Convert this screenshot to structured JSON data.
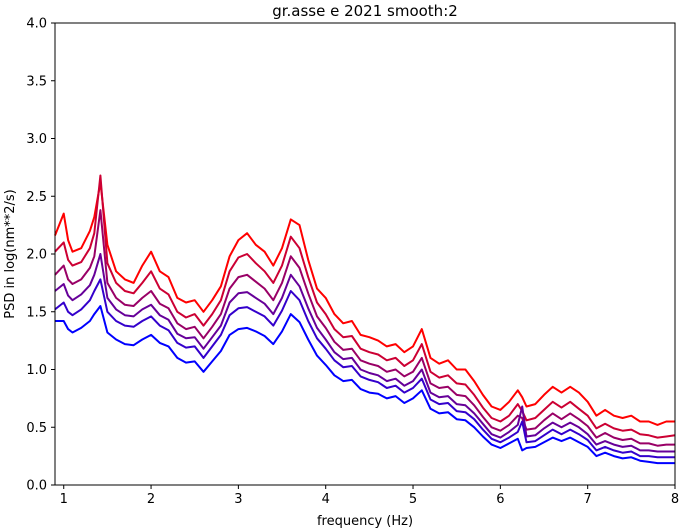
{
  "chart_data": {
    "type": "line",
    "title": "gr.asse e 2021 smooth:2",
    "xlabel": "frequency (Hz)",
    "ylabel": "PSD in log(nm**2/s)",
    "xlim": [
      0.9,
      8.0
    ],
    "ylim": [
      0.0,
      4.0
    ],
    "x_ticks": [
      "1",
      "2",
      "3",
      "4",
      "5",
      "6",
      "7",
      "8"
    ],
    "y_ticks": [
      "0.0",
      "0.5",
      "1.0",
      "1.5",
      "2.0",
      "2.5",
      "3.0",
      "3.5",
      "4.0"
    ],
    "grid": false,
    "legend": "none",
    "x": [
      0.9,
      1.0,
      1.05,
      1.1,
      1.2,
      1.3,
      1.35,
      1.42,
      1.5,
      1.6,
      1.7,
      1.8,
      1.9,
      2.0,
      2.1,
      2.2,
      2.3,
      2.4,
      2.5,
      2.6,
      2.7,
      2.8,
      2.9,
      3.0,
      3.1,
      3.2,
      3.3,
      3.4,
      3.5,
      3.6,
      3.7,
      3.8,
      3.9,
      4.0,
      4.1,
      4.2,
      4.3,
      4.4,
      4.5,
      4.6,
      4.7,
      4.8,
      4.9,
      5.0,
      5.1,
      5.2,
      5.3,
      5.4,
      5.5,
      5.6,
      5.7,
      5.8,
      5.9,
      6.0,
      6.1,
      6.2,
      6.25,
      6.3,
      6.4,
      6.5,
      6.6,
      6.7,
      6.8,
      6.9,
      7.0,
      7.1,
      7.2,
      7.3,
      7.4,
      7.5,
      7.6,
      7.7,
      7.8,
      7.9,
      8.0
    ],
    "series": [
      {
        "color": "#ff0000",
        "values": [
          2.16,
          2.35,
          2.12,
          2.02,
          2.05,
          2.2,
          2.32,
          2.62,
          2.08,
          1.85,
          1.78,
          1.75,
          1.9,
          2.02,
          1.85,
          1.8,
          1.62,
          1.58,
          1.6,
          1.5,
          1.6,
          1.72,
          1.98,
          2.12,
          2.18,
          2.08,
          2.02,
          1.9,
          2.05,
          2.3,
          2.25,
          1.95,
          1.7,
          1.62,
          1.48,
          1.4,
          1.42,
          1.3,
          1.28,
          1.25,
          1.2,
          1.22,
          1.15,
          1.2,
          1.35,
          1.1,
          1.05,
          1.08,
          1.0,
          1.0,
          0.9,
          0.78,
          0.68,
          0.65,
          0.72,
          0.82,
          0.76,
          0.68,
          0.7,
          0.78,
          0.85,
          0.8,
          0.85,
          0.8,
          0.72,
          0.6,
          0.65,
          0.6,
          0.58,
          0.6,
          0.55,
          0.55,
          0.52,
          0.55,
          0.55
        ]
      },
      {
        "color": "#cc0033",
        "values": [
          2.02,
          2.1,
          1.95,
          1.9,
          1.93,
          2.05,
          2.18,
          2.68,
          1.92,
          1.75,
          1.68,
          1.66,
          1.75,
          1.85,
          1.7,
          1.65,
          1.5,
          1.45,
          1.48,
          1.38,
          1.48,
          1.6,
          1.85,
          1.97,
          2.0,
          1.92,
          1.85,
          1.75,
          1.9,
          2.15,
          2.05,
          1.8,
          1.58,
          1.48,
          1.35,
          1.28,
          1.29,
          1.18,
          1.15,
          1.13,
          1.08,
          1.1,
          1.03,
          1.08,
          1.22,
          0.98,
          0.93,
          0.95,
          0.88,
          0.87,
          0.78,
          0.67,
          0.58,
          0.55,
          0.6,
          0.7,
          0.64,
          0.56,
          0.58,
          0.65,
          0.72,
          0.67,
          0.72,
          0.66,
          0.6,
          0.49,
          0.53,
          0.49,
          0.47,
          0.48,
          0.44,
          0.43,
          0.41,
          0.42,
          0.43
        ]
      },
      {
        "color": "#990066",
        "values": [
          1.82,
          1.9,
          1.78,
          1.74,
          1.78,
          1.88,
          1.98,
          2.38,
          1.75,
          1.62,
          1.56,
          1.55,
          1.62,
          1.68,
          1.57,
          1.53,
          1.4,
          1.35,
          1.37,
          1.27,
          1.37,
          1.48,
          1.7,
          1.8,
          1.82,
          1.76,
          1.7,
          1.6,
          1.75,
          1.98,
          1.88,
          1.66,
          1.46,
          1.36,
          1.24,
          1.17,
          1.18,
          1.08,
          1.05,
          1.03,
          0.98,
          1.0,
          0.94,
          0.98,
          1.1,
          0.88,
          0.84,
          0.85,
          0.78,
          0.77,
          0.69,
          0.59,
          0.5,
          0.47,
          0.52,
          0.6,
          0.58,
          0.48,
          0.49,
          0.56,
          0.62,
          0.57,
          0.62,
          0.57,
          0.51,
          0.41,
          0.45,
          0.41,
          0.39,
          0.4,
          0.36,
          0.36,
          0.34,
          0.35,
          0.35
        ]
      },
      {
        "color": "#660099",
        "values": [
          1.68,
          1.74,
          1.64,
          1.6,
          1.65,
          1.73,
          1.82,
          2.0,
          1.62,
          1.52,
          1.47,
          1.46,
          1.52,
          1.56,
          1.47,
          1.43,
          1.31,
          1.27,
          1.28,
          1.18,
          1.28,
          1.38,
          1.58,
          1.66,
          1.67,
          1.62,
          1.57,
          1.48,
          1.62,
          1.82,
          1.72,
          1.53,
          1.36,
          1.26,
          1.15,
          1.09,
          1.1,
          1.0,
          0.97,
          0.95,
          0.9,
          0.92,
          0.86,
          0.9,
          1.0,
          0.8,
          0.76,
          0.77,
          0.7,
          0.69,
          0.62,
          0.53,
          0.44,
          0.41,
          0.46,
          0.52,
          0.68,
          0.42,
          0.43,
          0.49,
          0.54,
          0.5,
          0.54,
          0.5,
          0.44,
          0.35,
          0.38,
          0.35,
          0.33,
          0.34,
          0.3,
          0.3,
          0.29,
          0.29,
          0.29
        ]
      },
      {
        "color": "#3300cc",
        "values": [
          1.52,
          1.58,
          1.5,
          1.47,
          1.52,
          1.6,
          1.68,
          1.78,
          1.5,
          1.42,
          1.38,
          1.37,
          1.42,
          1.46,
          1.38,
          1.34,
          1.23,
          1.19,
          1.2,
          1.1,
          1.2,
          1.3,
          1.47,
          1.53,
          1.54,
          1.5,
          1.46,
          1.38,
          1.51,
          1.68,
          1.6,
          1.42,
          1.27,
          1.18,
          1.08,
          1.02,
          1.03,
          0.94,
          0.91,
          0.89,
          0.84,
          0.86,
          0.8,
          0.84,
          0.92,
          0.74,
          0.7,
          0.71,
          0.64,
          0.63,
          0.57,
          0.48,
          0.4,
          0.37,
          0.41,
          0.46,
          0.55,
          0.37,
          0.38,
          0.43,
          0.48,
          0.44,
          0.48,
          0.44,
          0.39,
          0.3,
          0.33,
          0.3,
          0.28,
          0.29,
          0.25,
          0.25,
          0.24,
          0.24,
          0.24
        ]
      },
      {
        "color": "#0000ff",
        "values": [
          1.42,
          1.42,
          1.35,
          1.32,
          1.36,
          1.42,
          1.48,
          1.55,
          1.32,
          1.26,
          1.22,
          1.21,
          1.26,
          1.3,
          1.23,
          1.2,
          1.1,
          1.06,
          1.07,
          0.98,
          1.07,
          1.16,
          1.3,
          1.35,
          1.36,
          1.33,
          1.29,
          1.22,
          1.33,
          1.48,
          1.41,
          1.26,
          1.12,
          1.04,
          0.95,
          0.9,
          0.91,
          0.83,
          0.8,
          0.79,
          0.75,
          0.77,
          0.71,
          0.75,
          0.82,
          0.66,
          0.62,
          0.63,
          0.57,
          0.56,
          0.5,
          0.42,
          0.35,
          0.32,
          0.36,
          0.4,
          0.3,
          0.32,
          0.33,
          0.37,
          0.41,
          0.38,
          0.41,
          0.37,
          0.33,
          0.25,
          0.28,
          0.25,
          0.23,
          0.24,
          0.21,
          0.2,
          0.19,
          0.19,
          0.19
        ]
      }
    ]
  }
}
